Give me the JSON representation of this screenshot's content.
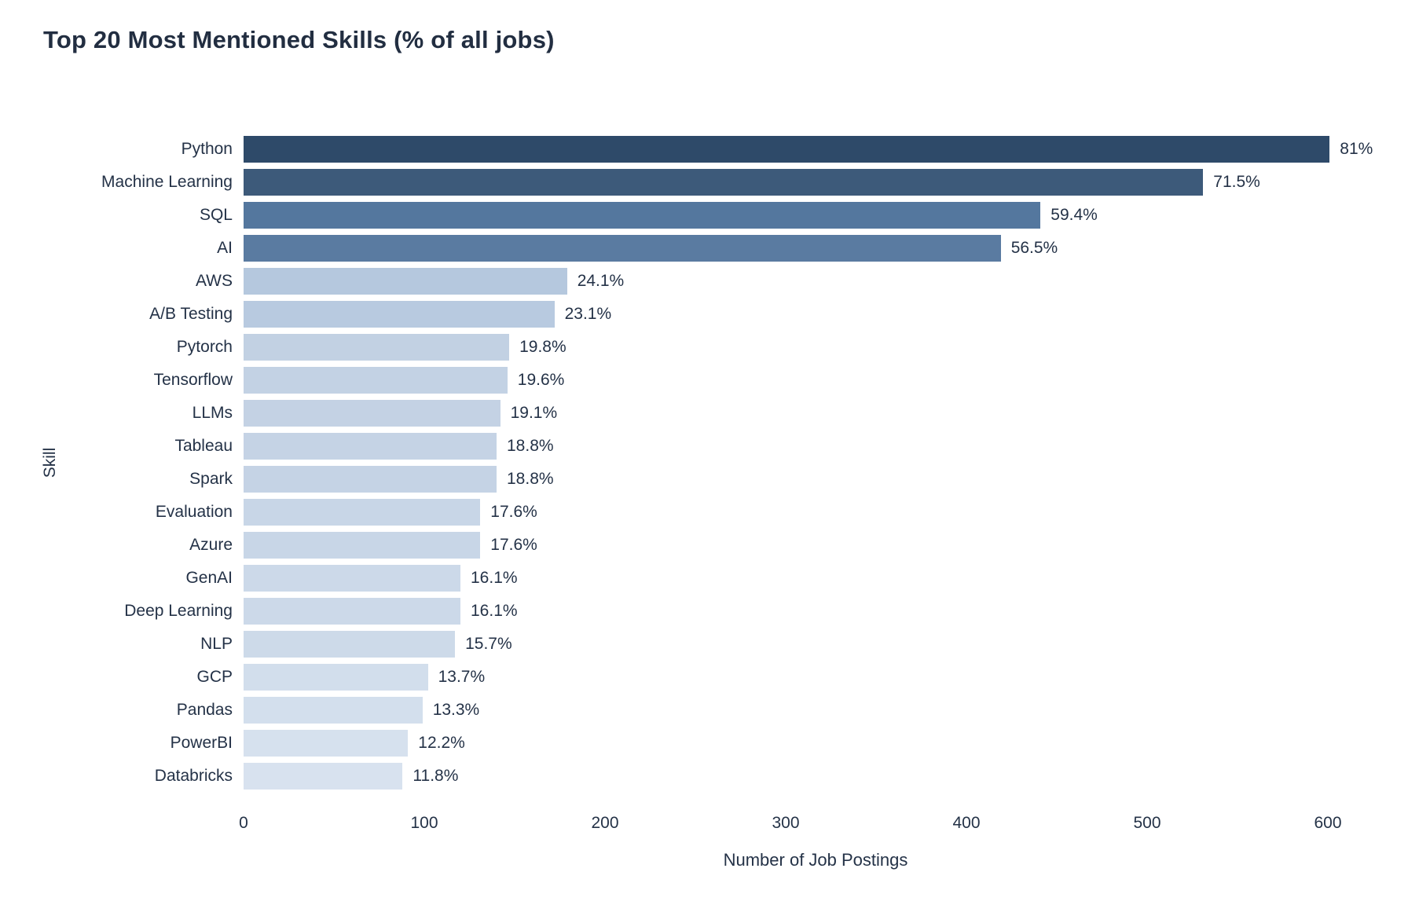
{
  "chart_data": {
    "type": "bar",
    "orientation": "horizontal",
    "title": "Top 20 Most Mentioned Skills (% of all jobs)",
    "xlabel": "Number of Job Postings",
    "ylabel": "Skill",
    "xlim": [
      0,
      600
    ],
    "x_ticks": [
      0,
      100,
      200,
      300,
      400,
      500,
      600
    ],
    "grid": false,
    "legend": false,
    "value_labels": "percent of all jobs, shown at bar end",
    "bars": [
      {
        "skill": "Python",
        "postings": 601,
        "pct": 81.0,
        "label": "81%",
        "color": "#2e4a69"
      },
      {
        "skill": "Machine Learning",
        "postings": 531,
        "pct": 71.5,
        "label": "71.5%",
        "color": "#3d5a7a"
      },
      {
        "skill": "SQL",
        "postings": 441,
        "pct": 59.4,
        "label": "59.4%",
        "color": "#54779e"
      },
      {
        "skill": "AI",
        "postings": 419,
        "pct": 56.5,
        "label": "56.5%",
        "color": "#5a7ba1"
      },
      {
        "skill": "AWS",
        "postings": 179,
        "pct": 24.1,
        "label": "24.1%",
        "color": "#b5c8de"
      },
      {
        "skill": "A/B Testing",
        "postings": 172,
        "pct": 23.1,
        "label": "23.1%",
        "color": "#b8cae0"
      },
      {
        "skill": "Pytorch",
        "postings": 147,
        "pct": 19.8,
        "label": "19.8%",
        "color": "#c2d1e3"
      },
      {
        "skill": "Tensorflow",
        "postings": 146,
        "pct": 19.6,
        "label": "19.6%",
        "color": "#c3d2e4"
      },
      {
        "skill": "LLMs",
        "postings": 142,
        "pct": 19.1,
        "label": "19.1%",
        "color": "#c4d2e4"
      },
      {
        "skill": "Tableau",
        "postings": 140,
        "pct": 18.8,
        "label": "18.8%",
        "color": "#c5d3e5"
      },
      {
        "skill": "Spark",
        "postings": 140,
        "pct": 18.8,
        "label": "18.8%",
        "color": "#c5d3e5"
      },
      {
        "skill": "Evaluation",
        "postings": 131,
        "pct": 17.6,
        "label": "17.6%",
        "color": "#c8d6e7"
      },
      {
        "skill": "Azure",
        "postings": 131,
        "pct": 17.6,
        "label": "17.6%",
        "color": "#c8d6e7"
      },
      {
        "skill": "GenAI",
        "postings": 120,
        "pct": 16.1,
        "label": "16.1%",
        "color": "#ccd9e9"
      },
      {
        "skill": "Deep Learning",
        "postings": 120,
        "pct": 16.1,
        "label": "16.1%",
        "color": "#ccd9e9"
      },
      {
        "skill": "NLP",
        "postings": 117,
        "pct": 15.7,
        "label": "15.7%",
        "color": "#cddae9"
      },
      {
        "skill": "GCP",
        "postings": 102,
        "pct": 13.7,
        "label": "13.7%",
        "color": "#d2deec"
      },
      {
        "skill": "Pandas",
        "postings": 99,
        "pct": 13.3,
        "label": "13.3%",
        "color": "#d3dfed"
      },
      {
        "skill": "PowerBI",
        "postings": 91,
        "pct": 12.2,
        "label": "12.2%",
        "color": "#d6e1ee"
      },
      {
        "skill": "Databricks",
        "postings": 88,
        "pct": 11.8,
        "label": "11.8%",
        "color": "#d8e2ef"
      }
    ],
    "colors": {
      "background": "#ffffff",
      "title_text": "#222e41",
      "axis_text": "#243247",
      "darkest_bar": "#2e4a69",
      "lightest_bar": "#d8e2ef"
    }
  }
}
